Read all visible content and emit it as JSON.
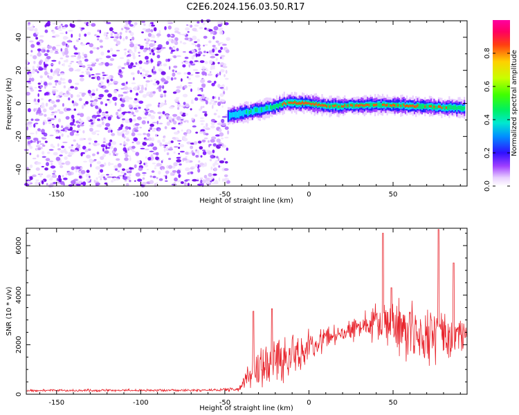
{
  "title": "C2E6.2024.156.03.50.R17",
  "colors": {
    "snr_line": "#e8232b",
    "axis": "#000000",
    "colormap": [
      "#ffffff",
      "#e9d0ff",
      "#a040ff",
      "#6a00e8",
      "#1030ff",
      "#00c8ff",
      "#00e890",
      "#40ff00",
      "#c8ff00",
      "#ffd000",
      "#ff4010",
      "#ff0060",
      "#ff00a0"
    ]
  },
  "chart_data": [
    {
      "type": "heatmap",
      "name": "spectrogram",
      "xlabel": "Height of straight line (km)",
      "ylabel": "Frequency (Hz)",
      "xlim": [
        -168,
        94
      ],
      "ylim": [
        -50,
        50
      ],
      "x_ticks": [
        -150,
        -100,
        -50,
        0,
        50
      ],
      "x_tick_labels": [
        "-150",
        "-100",
        "-50",
        "0",
        "50"
      ],
      "y_ticks": [
        -40,
        -20,
        0,
        20,
        40
      ],
      "y_tick_labels": [
        "-40",
        "-20",
        "0",
        "20",
        "40"
      ],
      "noise_region": {
        "x_range": [
          -168,
          -48
        ],
        "frequency_range": [
          -50,
          50
        ],
        "typical_amplitude": 0.2
      },
      "signal_track": {
        "heights_km": [
          -48,
          -40,
          -30,
          -20,
          -15,
          -10,
          0,
          10,
          20,
          30,
          40,
          50,
          60,
          70,
          80,
          94
        ],
        "frequency_hz": [
          -8,
          -6,
          -4,
          -2,
          0,
          0.5,
          0,
          -1.5,
          -1.5,
          -1,
          -1,
          -1,
          -1.5,
          -2,
          -2.5,
          -3
        ],
        "peak_amplitude": [
          0.45,
          0.5,
          0.55,
          0.65,
          0.8,
          0.95,
          0.9,
          0.95,
          0.85,
          0.9,
          0.85,
          0.9,
          0.85,
          0.85,
          0.8,
          0.6
        ]
      },
      "colorbar": {
        "label": "Normalized spectral amplitude",
        "range": [
          0,
          1
        ],
        "ticks": [
          0,
          0.2,
          0.4,
          0.6,
          0.8
        ],
        "tick_labels": [
          "0.0",
          "0.2",
          "0.4",
          "0.6",
          "0.8"
        ]
      }
    },
    {
      "type": "line",
      "name": "snr",
      "xlabel": "Height of straight line (km)",
      "ylabel": "SNR (10 * v/v)",
      "xlim": [
        -168,
        94
      ],
      "ylim": [
        0,
        6700
      ],
      "x_ticks": [
        -150,
        -100,
        -50,
        0,
        50
      ],
      "x_tick_labels": [
        "-150",
        "-100",
        "-50",
        "0",
        "50"
      ],
      "y_ticks": [
        0,
        2000,
        4000,
        6000
      ],
      "y_tick_labels": [
        "0",
        "2000",
        "4000",
        "6000"
      ],
      "envelope": {
        "x": [
          -168,
          -60,
          -42,
          -38,
          -30,
          -20,
          -10,
          -5,
          0,
          10,
          20,
          30,
          40,
          45,
          50,
          60,
          70,
          80,
          88,
          94
        ],
        "mean": [
          150,
          160,
          200,
          600,
          1000,
          1400,
          1500,
          1700,
          2000,
          2300,
          2500,
          2700,
          2900,
          3000,
          2800,
          2600,
          2400,
          2300,
          2200,
          2400
        ],
        "spread": [
          60,
          60,
          100,
          400,
          900,
          1200,
          1200,
          900,
          800,
          600,
          500,
          600,
          900,
          1300,
          1500,
          1400,
          1300,
          1500,
          1300,
          250
        ]
      },
      "peaks": [
        {
          "x": -33,
          "y": 3350
        },
        {
          "x": -22,
          "y": 3450
        },
        {
          "x": 44,
          "y": 6500
        },
        {
          "x": 49,
          "y": 4300
        },
        {
          "x": 77,
          "y": 6650
        },
        {
          "x": 86,
          "y": 5300
        }
      ]
    }
  ]
}
